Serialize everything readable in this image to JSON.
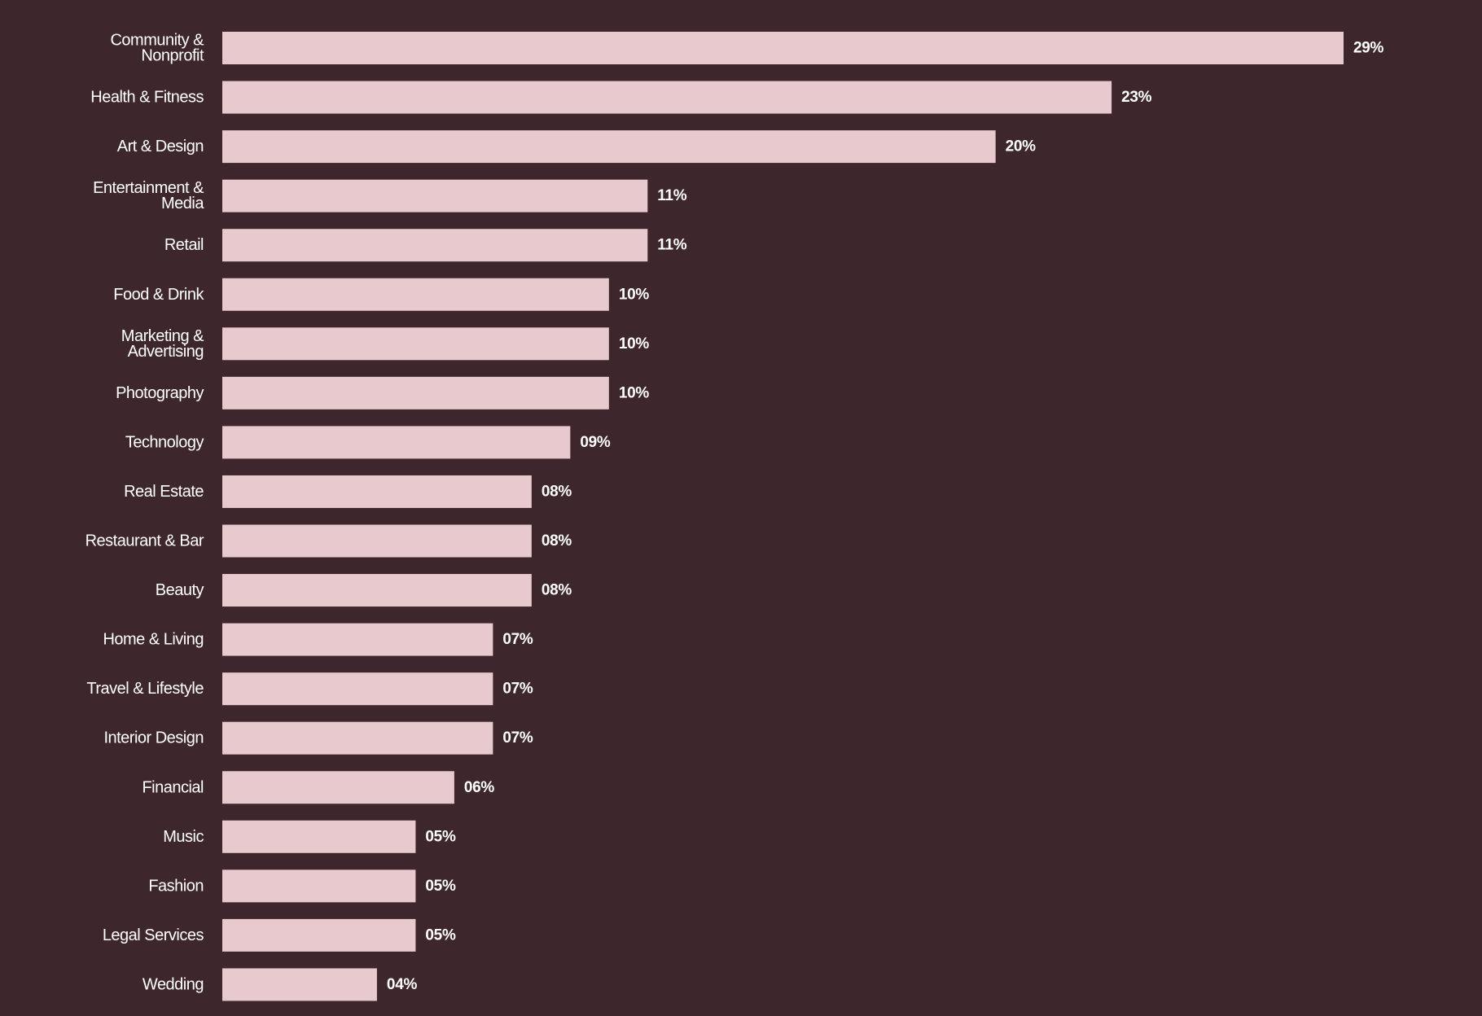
{
  "colors": {
    "background": "#3e272c",
    "bar": "#e8c9ce",
    "text": "#ffffff"
  },
  "chart_data": {
    "type": "bar",
    "orientation": "horizontal",
    "title": "",
    "xlabel": "",
    "ylabel": "",
    "xlim": [
      0,
      29
    ],
    "grid": false,
    "legend": "none",
    "categories": [
      "Community & Nonprofit",
      "Health & Fitness",
      "Art & Design",
      "Entertainment & Media",
      "Retail",
      "Food & Drink",
      "Marketing & Advertising",
      "Photography",
      "Technology",
      "Real Estate",
      "Restaurant & Bar",
      "Beauty",
      "Home & Living",
      "Travel & Lifestyle",
      "Interior Design",
      "Financial",
      "Music",
      "Fashion",
      "Legal Services",
      "Wedding"
    ],
    "values": [
      29,
      23,
      20,
      11,
      11,
      10,
      10,
      10,
      9,
      8,
      8,
      8,
      7,
      7,
      7,
      6,
      5,
      5,
      5,
      4
    ],
    "value_labels": [
      "29%",
      "23%",
      "20%",
      "11%",
      "11%",
      "10%",
      "10%",
      "10%",
      "09%",
      "08%",
      "08%",
      "08%",
      "07%",
      "07%",
      "07%",
      "06%",
      "05%",
      "05%",
      "05%",
      "04%"
    ],
    "category_lines": [
      [
        "Community &",
        "Nonprofit"
      ],
      [
        "Health & Fitness"
      ],
      [
        "Art & Design"
      ],
      [
        "Entertainment &",
        "Media"
      ],
      [
        "Retail"
      ],
      [
        "Food & Drink"
      ],
      [
        "Marketing &",
        "Advertising"
      ],
      [
        "Photography"
      ],
      [
        "Technology"
      ],
      [
        "Real Estate"
      ],
      [
        "Restaurant & Bar"
      ],
      [
        "Beauty"
      ],
      [
        "Home & Living"
      ],
      [
        "Travel & Lifestyle"
      ],
      [
        "Interior Design"
      ],
      [
        "Financial"
      ],
      [
        "Music"
      ],
      [
        "Fashion"
      ],
      [
        "Legal Services"
      ],
      [
        "Wedding"
      ]
    ]
  }
}
